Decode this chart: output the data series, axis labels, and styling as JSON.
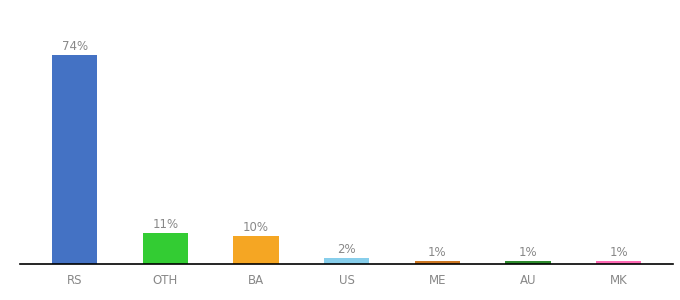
{
  "categories": [
    "RS",
    "OTH",
    "BA",
    "US",
    "ME",
    "AU",
    "MK"
  ],
  "values": [
    74,
    11,
    10,
    2,
    1,
    1,
    1
  ],
  "bar_colors": [
    "#4472c4",
    "#33cc33",
    "#f5a623",
    "#87ceeb",
    "#cc7722",
    "#2d8a2d",
    "#ff69b4"
  ],
  "labels": [
    "74%",
    "11%",
    "10%",
    "2%",
    "1%",
    "1%",
    "1%"
  ],
  "background_color": "#ffffff",
  "label_fontsize": 8.5,
  "tick_fontsize": 8.5,
  "label_color": "#888888",
  "tick_color": "#888888",
  "bar_width": 0.5,
  "ylim": [
    0,
    85
  ]
}
